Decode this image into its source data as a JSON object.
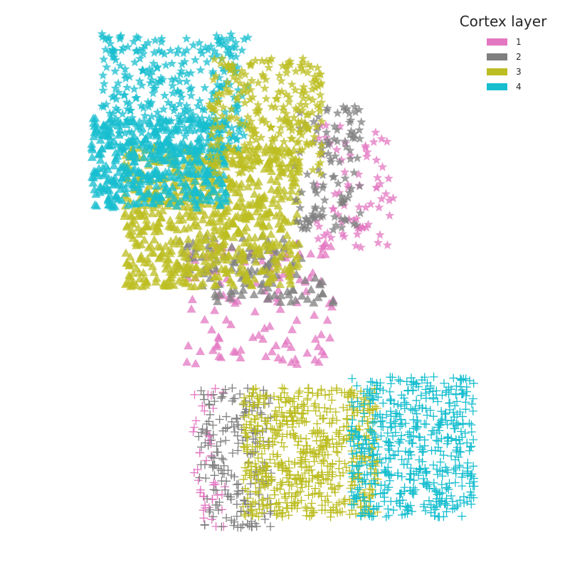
{
  "chart_data": {
    "type": "scatter",
    "title": "",
    "xlabel": "",
    "ylabel": "",
    "grid": false,
    "axes_visible": false,
    "legend": {
      "title": "Cortex layer",
      "placement": "top-right",
      "entries": [
        {
          "label": "1",
          "color": "#e377c2"
        },
        {
          "label": "2",
          "color": "#7f7f7f"
        },
        {
          "label": "3",
          "color": "#bcbd22"
        },
        {
          "label": "4",
          "color": "#17becf"
        }
      ]
    },
    "xlim": [
      0,
      100
    ],
    "ylim": [
      0,
      100
    ],
    "point_count_per_cluster": {
      "triangle": {
        "1": 110,
        "2": 120,
        "3": 700,
        "4": 420
      },
      "star": {
        "1": 75,
        "2": 110,
        "3": 280,
        "4": 320
      },
      "plus": {
        "1": 45,
        "2": 190,
        "3": 620,
        "4": 540
      }
    },
    "series": [
      {
        "group": "triangle",
        "layer": "1",
        "marker": "triangle",
        "color": "#e377c2",
        "region": {
          "x": [
            33,
            59
          ],
          "y": [
            35,
            57
          ],
          "skew": 0.0
        }
      },
      {
        "group": "triangle",
        "layer": "2",
        "marker": "triangle",
        "color": "#7f7f7f",
        "region": {
          "x": [
            32,
            56
          ],
          "y": [
            46,
            58
          ],
          "skew": -0.35
        }
      },
      {
        "group": "triangle",
        "layer": "3",
        "marker": "triangle",
        "color": "#bcbd22",
        "region": {
          "x": [
            22,
            53
          ],
          "y": [
            49,
            74
          ],
          "skew": 0.0
        }
      },
      {
        "group": "triangle",
        "layer": "4",
        "marker": "triangle",
        "color": "#17becf",
        "region": {
          "x": [
            16,
            40
          ],
          "y": [
            63,
            79
          ],
          "skew": 0.0
        }
      },
      {
        "group": "star",
        "layer": "1",
        "marker": "star",
        "color": "#e377c2",
        "region": {
          "x": [
            56,
            70
          ],
          "y": [
            55,
            78
          ],
          "skew": 0.0
        }
      },
      {
        "group": "star",
        "layer": "2",
        "marker": "star",
        "color": "#7f7f7f",
        "region": {
          "x": [
            52,
            64
          ],
          "y": [
            59,
            81
          ],
          "skew": 0.0
        }
      },
      {
        "group": "star",
        "layer": "3",
        "marker": "star",
        "color": "#bcbd22",
        "region": {
          "x": [
            37,
            57
          ],
          "y": [
            69,
            90
          ],
          "skew": 0.0
        }
      },
      {
        "group": "star",
        "layer": "4",
        "marker": "star",
        "color": "#17becf",
        "region": {
          "x": [
            18,
            44
          ],
          "y": [
            73,
            94
          ],
          "skew": 0.0
        }
      },
      {
        "group": "plus",
        "layer": "1",
        "marker": "plus",
        "color": "#e377c2",
        "region": {
          "x": [
            34,
            40
          ],
          "y": [
            6,
            31
          ],
          "skew": 0.0
        }
      },
      {
        "group": "plus",
        "layer": "2",
        "marker": "plus",
        "color": "#7f7f7f",
        "region": {
          "x": [
            35,
            48
          ],
          "y": [
            6,
            31
          ],
          "skew": 0.0
        }
      },
      {
        "group": "plus",
        "layer": "3",
        "marker": "plus",
        "color": "#bcbd22",
        "region": {
          "x": [
            43,
            67
          ],
          "y": [
            8,
            31
          ],
          "skew": 0.0
        }
      },
      {
        "group": "plus",
        "layer": "4",
        "marker": "plus",
        "color": "#17becf",
        "region": {
          "x": [
            62,
            84
          ],
          "y": [
            8,
            33
          ],
          "skew": 0.0
        }
      }
    ]
  }
}
